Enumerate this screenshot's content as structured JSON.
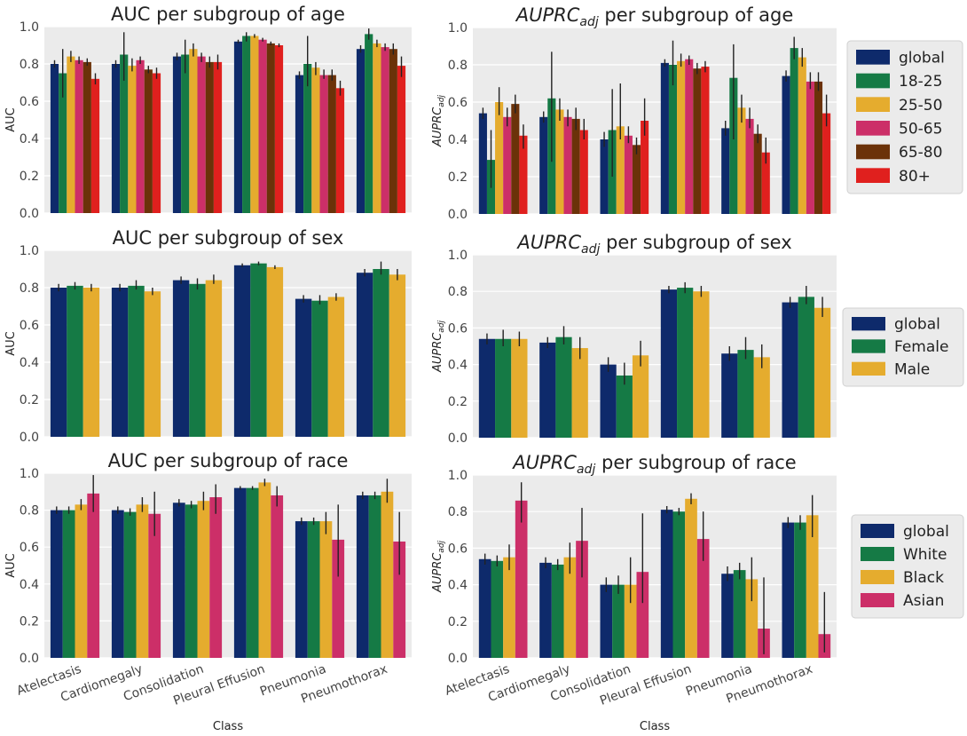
{
  "colors": {
    "global": "#0e2a6b",
    "green": "#157a45",
    "yellow": "#e5ac2e",
    "pink": "#cc2f68",
    "brown": "#6b3209",
    "red": "#e0201e",
    "panel_bg": "#ebebeb",
    "grid": "#ffffff",
    "errorbar": "#222222"
  },
  "xlabel": "Class",
  "chart_data": [
    {
      "type": "bar",
      "title": "AUC per subgroup of age",
      "ylabel": "AUC",
      "ylim": [
        0,
        1.0
      ],
      "yticks": [
        "0.0",
        "0.2",
        "0.4",
        "0.6",
        "0.8",
        "1.0"
      ],
      "categories": [
        "Atelectasis",
        "Cardiomegaly",
        "Consolidation",
        "Pleural Effusion",
        "Pneumonia",
        "Pneumothorax"
      ],
      "series": [
        {
          "name": "global",
          "values": [
            0.8,
            0.8,
            0.84,
            0.92,
            0.74,
            0.88
          ],
          "err_low": [
            0.78,
            0.78,
            0.82,
            0.91,
            0.72,
            0.86
          ],
          "err_high": [
            0.82,
            0.82,
            0.86,
            0.93,
            0.76,
            0.9
          ]
        },
        {
          "name": "18-25",
          "values": [
            0.75,
            0.85,
            0.85,
            0.95,
            0.8,
            0.96
          ],
          "err_low": [
            0.62,
            0.71,
            0.75,
            0.92,
            0.68,
            0.93
          ],
          "err_high": [
            0.88,
            0.97,
            0.93,
            0.97,
            0.95,
            0.99
          ]
        },
        {
          "name": "25-50",
          "values": [
            0.84,
            0.79,
            0.88,
            0.95,
            0.78,
            0.91
          ],
          "err_low": [
            0.81,
            0.76,
            0.84,
            0.94,
            0.74,
            0.89
          ],
          "err_high": [
            0.87,
            0.83,
            0.91,
            0.96,
            0.81,
            0.93
          ]
        },
        {
          "name": "50-65",
          "values": [
            0.82,
            0.82,
            0.84,
            0.93,
            0.74,
            0.89
          ],
          "err_low": [
            0.8,
            0.8,
            0.81,
            0.92,
            0.72,
            0.87
          ],
          "err_high": [
            0.84,
            0.84,
            0.86,
            0.94,
            0.77,
            0.91
          ]
        },
        {
          "name": "65-80",
          "values": [
            0.81,
            0.77,
            0.81,
            0.91,
            0.74,
            0.88
          ],
          "err_low": [
            0.79,
            0.75,
            0.78,
            0.9,
            0.71,
            0.85
          ],
          "err_high": [
            0.83,
            0.79,
            0.84,
            0.92,
            0.77,
            0.91
          ]
        },
        {
          "name": "80+",
          "values": [
            0.72,
            0.75,
            0.81,
            0.9,
            0.67,
            0.79
          ],
          "err_low": [
            0.69,
            0.72,
            0.77,
            0.89,
            0.63,
            0.73
          ],
          "err_high": [
            0.75,
            0.78,
            0.85,
            0.91,
            0.71,
            0.84
          ]
        }
      ]
    },
    {
      "type": "bar",
      "title": "AUPRC",
      "title_subscript": "adj",
      "title_suffix": " per subgroup of age",
      "ylabel": "AUPRC",
      "ylabel_subscript": "adj",
      "ylim": [
        0,
        1.0
      ],
      "yticks": [
        "0.0",
        "0.2",
        "0.4",
        "0.6",
        "0.8",
        "1.0"
      ],
      "categories": [
        "Atelectasis",
        "Cardiomegaly",
        "Consolidation",
        "Pleural Effusion",
        "Pneumonia",
        "Pneumothorax"
      ],
      "legend_position": "right",
      "series": [
        {
          "name": "global",
          "values": [
            0.54,
            0.52,
            0.4,
            0.81,
            0.46,
            0.74
          ],
          "err_low": [
            0.51,
            0.49,
            0.36,
            0.79,
            0.42,
            0.71
          ],
          "err_high": [
            0.57,
            0.55,
            0.44,
            0.83,
            0.5,
            0.77
          ]
        },
        {
          "name": "18-25",
          "values": [
            0.29,
            0.62,
            0.45,
            0.8,
            0.73,
            0.89
          ],
          "err_low": [
            0.14,
            0.28,
            0.2,
            0.69,
            0.4,
            0.83
          ],
          "err_high": [
            0.45,
            0.87,
            0.67,
            0.93,
            0.91,
            0.95
          ]
        },
        {
          "name": "25-50",
          "values": [
            0.6,
            0.56,
            0.47,
            0.82,
            0.57,
            0.84
          ],
          "err_low": [
            0.53,
            0.5,
            0.4,
            0.79,
            0.49,
            0.79
          ],
          "err_high": [
            0.68,
            0.62,
            0.7,
            0.86,
            0.64,
            0.89
          ]
        },
        {
          "name": "50-65",
          "values": [
            0.52,
            0.52,
            0.42,
            0.83,
            0.51,
            0.71
          ],
          "err_low": [
            0.47,
            0.47,
            0.38,
            0.8,
            0.46,
            0.67
          ],
          "err_high": [
            0.57,
            0.56,
            0.47,
            0.85,
            0.57,
            0.76
          ]
        },
        {
          "name": "65-80",
          "values": [
            0.59,
            0.51,
            0.37,
            0.78,
            0.43,
            0.71
          ],
          "err_low": [
            0.54,
            0.45,
            0.32,
            0.75,
            0.38,
            0.66
          ],
          "err_high": [
            0.64,
            0.57,
            0.41,
            0.81,
            0.48,
            0.76
          ]
        },
        {
          "name": "80+",
          "values": [
            0.42,
            0.45,
            0.5,
            0.79,
            0.33,
            0.54
          ],
          "err_low": [
            0.35,
            0.4,
            0.42,
            0.76,
            0.27,
            0.47
          ],
          "err_high": [
            0.48,
            0.51,
            0.62,
            0.82,
            0.41,
            0.64
          ]
        }
      ]
    },
    {
      "type": "bar",
      "title": "AUC per subgroup of sex",
      "ylabel": "AUC",
      "ylim": [
        0,
        1.0
      ],
      "yticks": [
        "0.0",
        "0.2",
        "0.4",
        "0.6",
        "0.8",
        "1.0"
      ],
      "categories": [
        "Atelectasis",
        "Cardiomegaly",
        "Consolidation",
        "Pleural Effusion",
        "Pneumonia",
        "Pneumothorax"
      ],
      "series": [
        {
          "name": "global",
          "values": [
            0.8,
            0.8,
            0.84,
            0.92,
            0.74,
            0.88
          ],
          "err_low": [
            0.78,
            0.78,
            0.82,
            0.91,
            0.72,
            0.86
          ],
          "err_high": [
            0.82,
            0.82,
            0.86,
            0.93,
            0.76,
            0.9
          ]
        },
        {
          "name": "Female",
          "values": [
            0.81,
            0.81,
            0.82,
            0.93,
            0.73,
            0.9
          ],
          "err_low": [
            0.79,
            0.79,
            0.79,
            0.92,
            0.71,
            0.87
          ],
          "err_high": [
            0.83,
            0.84,
            0.85,
            0.94,
            0.76,
            0.94
          ]
        },
        {
          "name": "Male",
          "values": [
            0.8,
            0.78,
            0.84,
            0.91,
            0.75,
            0.87
          ],
          "err_low": [
            0.78,
            0.76,
            0.82,
            0.9,
            0.73,
            0.84
          ],
          "err_high": [
            0.82,
            0.8,
            0.87,
            0.92,
            0.77,
            0.9
          ]
        }
      ]
    },
    {
      "type": "bar",
      "title": "AUPRC",
      "title_subscript": "adj",
      "title_suffix": " per subgroup of sex",
      "ylabel": "AUPRC",
      "ylabel_subscript": "adj",
      "ylim": [
        0,
        1.0
      ],
      "yticks": [
        "0.0",
        "0.2",
        "0.4",
        "0.6",
        "0.8",
        "1.0"
      ],
      "categories": [
        "Atelectasis",
        "Cardiomegaly",
        "Consolidation",
        "Pleural Effusion",
        "Pneumonia",
        "Pneumothorax"
      ],
      "legend_position": "right",
      "series": [
        {
          "name": "global",
          "values": [
            0.54,
            0.52,
            0.4,
            0.81,
            0.46,
            0.74
          ],
          "err_low": [
            0.51,
            0.49,
            0.36,
            0.79,
            0.42,
            0.71
          ],
          "err_high": [
            0.57,
            0.55,
            0.44,
            0.83,
            0.5,
            0.77
          ]
        },
        {
          "name": "Female",
          "values": [
            0.54,
            0.55,
            0.34,
            0.82,
            0.48,
            0.77
          ],
          "err_low": [
            0.5,
            0.51,
            0.29,
            0.79,
            0.43,
            0.73
          ],
          "err_high": [
            0.59,
            0.61,
            0.41,
            0.85,
            0.55,
            0.83
          ]
        },
        {
          "name": "Male",
          "values": [
            0.54,
            0.49,
            0.45,
            0.8,
            0.44,
            0.71
          ],
          "err_low": [
            0.5,
            0.43,
            0.39,
            0.77,
            0.38,
            0.66
          ],
          "err_high": [
            0.58,
            0.55,
            0.53,
            0.83,
            0.51,
            0.77
          ]
        }
      ]
    },
    {
      "type": "bar",
      "title": "AUC per subgroup of race",
      "ylabel": "AUC",
      "xlabel": "Class",
      "ylim": [
        0,
        1.0
      ],
      "yticks": [
        "0.0",
        "0.2",
        "0.4",
        "0.6",
        "0.8",
        "1.0"
      ],
      "categories": [
        "Atelectasis",
        "Cardiomegaly",
        "Consolidation",
        "Pleural Effusion",
        "Pneumonia",
        "Pneumothorax"
      ],
      "series": [
        {
          "name": "global",
          "values": [
            0.8,
            0.8,
            0.84,
            0.92,
            0.74,
            0.88
          ],
          "err_low": [
            0.78,
            0.78,
            0.82,
            0.91,
            0.72,
            0.86
          ],
          "err_high": [
            0.82,
            0.82,
            0.86,
            0.93,
            0.76,
            0.9
          ]
        },
        {
          "name": "White",
          "values": [
            0.8,
            0.79,
            0.83,
            0.92,
            0.74,
            0.88
          ],
          "err_low": [
            0.78,
            0.77,
            0.81,
            0.91,
            0.72,
            0.86
          ],
          "err_high": [
            0.82,
            0.81,
            0.85,
            0.93,
            0.76,
            0.9
          ]
        },
        {
          "name": "Black",
          "values": [
            0.83,
            0.83,
            0.85,
            0.95,
            0.74,
            0.9
          ],
          "err_low": [
            0.8,
            0.79,
            0.8,
            0.93,
            0.67,
            0.84
          ],
          "err_high": [
            0.86,
            0.87,
            0.9,
            0.97,
            0.79,
            0.97
          ]
        },
        {
          "name": "Asian",
          "values": [
            0.89,
            0.78,
            0.87,
            0.88,
            0.64,
            0.63
          ],
          "err_low": [
            0.79,
            0.66,
            0.78,
            0.82,
            0.44,
            0.45
          ],
          "err_high": [
            0.99,
            0.9,
            0.94,
            0.93,
            0.83,
            0.79
          ]
        }
      ]
    },
    {
      "type": "bar",
      "title": "AUPRC",
      "title_subscript": "adj",
      "title_suffix": " per subgroup of race",
      "ylabel": "AUPRC",
      "ylabel_subscript": "adj",
      "xlabel": "Class",
      "ylim": [
        0,
        1.0
      ],
      "yticks": [
        "0.0",
        "0.2",
        "0.4",
        "0.6",
        "0.8",
        "1.0"
      ],
      "categories": [
        "Atelectasis",
        "Cardiomegaly",
        "Consolidation",
        "Pleural Effusion",
        "Pneumonia",
        "Pneumothorax"
      ],
      "legend_position": "right",
      "series": [
        {
          "name": "global",
          "values": [
            0.54,
            0.52,
            0.4,
            0.81,
            0.46,
            0.74
          ],
          "err_low": [
            0.51,
            0.49,
            0.36,
            0.79,
            0.42,
            0.71
          ],
          "err_high": [
            0.57,
            0.55,
            0.44,
            0.83,
            0.5,
            0.77
          ]
        },
        {
          "name": "White",
          "values": [
            0.53,
            0.51,
            0.4,
            0.8,
            0.48,
            0.74
          ],
          "err_low": [
            0.5,
            0.48,
            0.35,
            0.78,
            0.43,
            0.7
          ],
          "err_high": [
            0.56,
            0.54,
            0.45,
            0.82,
            0.52,
            0.78
          ]
        },
        {
          "name": "Black",
          "values": [
            0.55,
            0.55,
            0.4,
            0.87,
            0.43,
            0.78
          ],
          "err_low": [
            0.48,
            0.46,
            0.3,
            0.84,
            0.31,
            0.66
          ],
          "err_high": [
            0.62,
            0.63,
            0.55,
            0.9,
            0.55,
            0.89
          ]
        },
        {
          "name": "Asian",
          "values": [
            0.86,
            0.64,
            0.47,
            0.65,
            0.16,
            0.13
          ],
          "err_low": [
            0.74,
            0.44,
            0.3,
            0.53,
            0.02,
            0.03
          ],
          "err_high": [
            0.96,
            0.82,
            0.79,
            0.8,
            0.44,
            0.36
          ]
        }
      ]
    }
  ]
}
